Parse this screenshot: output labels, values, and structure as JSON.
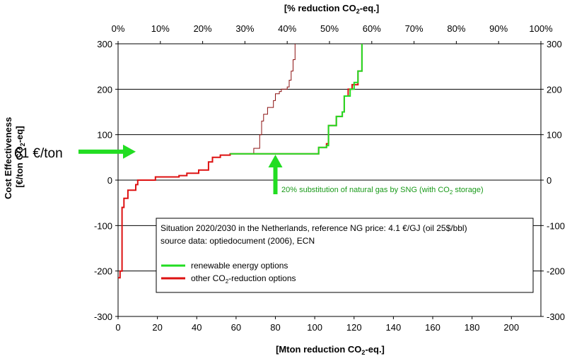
{
  "chart_data": {
    "type": "line",
    "top_axis": {
      "label": "[% reduction CO2-eq.]",
      "ticks": [
        "0%",
        "10%",
        "20%",
        "30%",
        "40%",
        "50%",
        "60%",
        "70%",
        "80%",
        "90%",
        "100%"
      ]
    },
    "xlabel": "[Mton reduction CO2-eq.]",
    "ylabel_line1": "Cost Effectiveness",
    "ylabel_line2": "[€/ton CO2-eq]",
    "xlim": [
      0,
      215
    ],
    "ylim": [
      -300,
      300
    ],
    "x_ticks": [
      0,
      20,
      40,
      60,
      80,
      100,
      120,
      140,
      160,
      180,
      200
    ],
    "y_ticks": [
      -300,
      -200,
      -100,
      0,
      100,
      200,
      300
    ],
    "grid": "horizontal",
    "series": [
      {
        "name": "renewable energy options",
        "color": "#22dd22",
        "points": [
          [
            57,
            58
          ],
          [
            102,
            58
          ],
          [
            102,
            72
          ],
          [
            106,
            72
          ],
          [
            106,
            76
          ],
          [
            107,
            76
          ],
          [
            107,
            120
          ],
          [
            111,
            120
          ],
          [
            111,
            140
          ],
          [
            114,
            140
          ],
          [
            114,
            150
          ],
          [
            115,
            150
          ],
          [
            115,
            185
          ],
          [
            118,
            185
          ],
          [
            118,
            200
          ],
          [
            120,
            200
          ],
          [
            120,
            215
          ],
          [
            122,
            215
          ],
          [
            122,
            240
          ],
          [
            124,
            240
          ],
          [
            124,
            300
          ]
        ]
      },
      {
        "name": "other CO2-reduction options",
        "color": "#dd1111",
        "points": [
          [
            0,
            -215
          ],
          [
            1,
            -215
          ],
          [
            1,
            -200
          ],
          [
            2,
            -200
          ],
          [
            2,
            -60
          ],
          [
            3,
            -60
          ],
          [
            3,
            -40
          ],
          [
            5,
            -40
          ],
          [
            5,
            -22
          ],
          [
            9,
            -22
          ],
          [
            9,
            -10
          ],
          [
            10,
            -10
          ],
          [
            10,
            0
          ],
          [
            19,
            0
          ],
          [
            19,
            7
          ],
          [
            31,
            7
          ],
          [
            31,
            10
          ],
          [
            35,
            10
          ],
          [
            35,
            15
          ],
          [
            41,
            15
          ],
          [
            41,
            22
          ],
          [
            46,
            22
          ],
          [
            46,
            40
          ],
          [
            48,
            40
          ],
          [
            48,
            50
          ],
          [
            52,
            50
          ],
          [
            52,
            55
          ],
          [
            57,
            55
          ],
          [
            57,
            58
          ],
          [
            102,
            58
          ],
          [
            102,
            72
          ],
          [
            106,
            72
          ],
          [
            106,
            80
          ],
          [
            107,
            80
          ],
          [
            107,
            120
          ],
          [
            111,
            120
          ],
          [
            111,
            140
          ],
          [
            114,
            140
          ],
          [
            114,
            150
          ],
          [
            115,
            150
          ],
          [
            115,
            185
          ],
          [
            117,
            185
          ],
          [
            117,
            200
          ],
          [
            119,
            200
          ],
          [
            119,
            210
          ],
          [
            122,
            210
          ],
          [
            122,
            240
          ],
          [
            124,
            240
          ],
          [
            124,
            300
          ]
        ]
      },
      {
        "name": "",
        "color": "#8b1111",
        "points": [
          [
            57,
            58
          ],
          [
            69,
            58
          ],
          [
            69,
            70
          ],
          [
            72,
            70
          ],
          [
            72,
            100
          ],
          [
            73,
            100
          ],
          [
            73,
            130
          ],
          [
            74,
            130
          ],
          [
            74,
            145
          ],
          [
            76,
            145
          ],
          [
            76,
            160
          ],
          [
            79,
            160
          ],
          [
            79,
            175
          ],
          [
            80,
            175
          ],
          [
            80,
            190
          ],
          [
            82,
            190
          ],
          [
            82,
            195
          ],
          [
            83,
            195
          ],
          [
            83,
            200
          ],
          [
            86,
            200
          ],
          [
            86,
            205
          ],
          [
            87,
            205
          ],
          [
            87,
            220
          ],
          [
            88,
            220
          ],
          [
            88,
            240
          ],
          [
            89,
            240
          ],
          [
            89,
            265
          ],
          [
            90,
            265
          ],
          [
            90,
            300
          ]
        ]
      }
    ],
    "annotations": {
      "price_label": "61 €/ton",
      "price_value": 61,
      "sng_text": "20% substitution of natural gas by SNG (with CO2 storage)",
      "sng_x": 80
    },
    "legend": {
      "line1": "Situation 2020/2030 in the Netherlands, reference NG price: 4.1 €/GJ (oil 25$/bbl)",
      "line2": "source data: optiedocument (2006), ECN",
      "entries": [
        {
          "label": "renewable energy options",
          "color": "#22dd22"
        },
        {
          "label": "other CO2-reduction options",
          "color": "#dd1111"
        }
      ],
      "placement": "bottom-right"
    }
  }
}
